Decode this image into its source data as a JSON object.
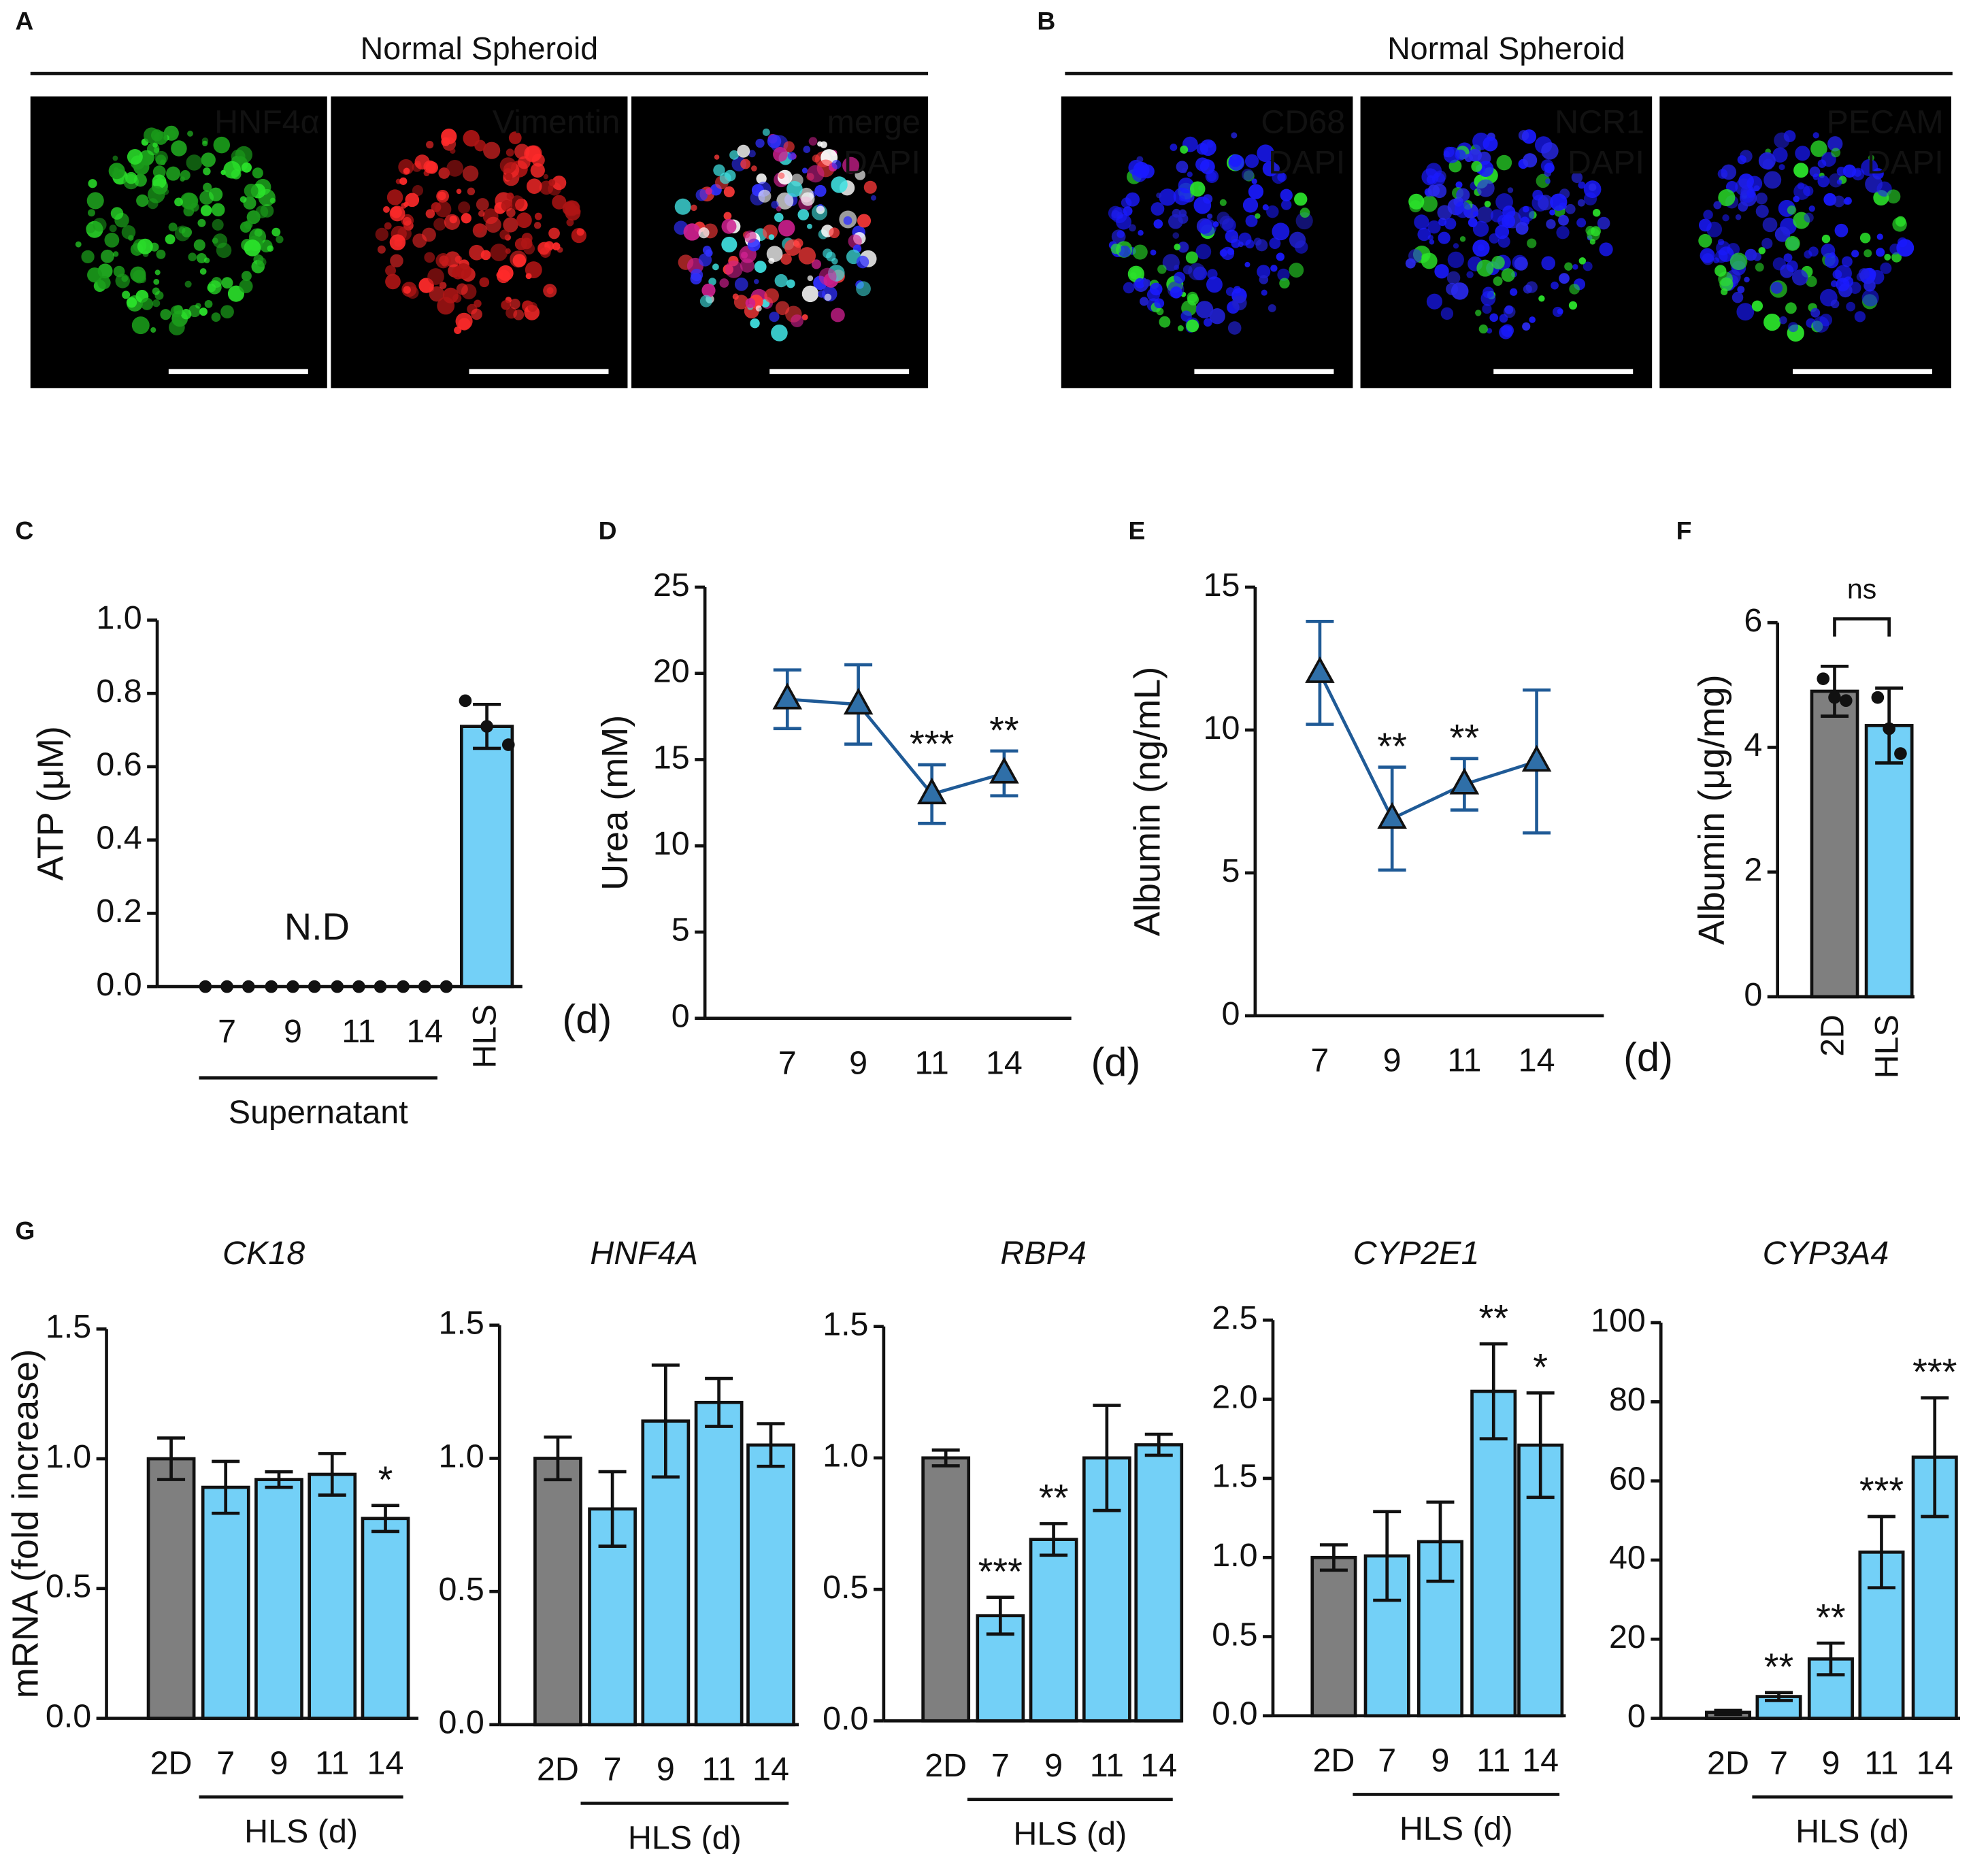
{
  "figure_panels": [
    {
      "panel": "A",
      "title": "Normal Spheroid",
      "images": [
        {
          "labels": [
            {
              "text": "HNF4α",
              "color": "#2be32b"
            }
          ]
        },
        {
          "labels": [
            {
              "text": "Vimentin",
              "color": "#ff2222"
            }
          ]
        },
        {
          "labels": [
            {
              "text": "merge",
              "color": "#ffffff"
            },
            {
              "text": "DAPI",
              "color": "#2222ff"
            }
          ]
        }
      ]
    },
    {
      "panel": "B",
      "title": "Normal Spheroid",
      "images": [
        {
          "labels": [
            {
              "text": "CD68",
              "color": "#2be32b"
            },
            {
              "text": "DAPI",
              "color": "#2222ff"
            }
          ]
        },
        {
          "labels": [
            {
              "text": "NCR1",
              "color": "#2be32b"
            },
            {
              "text": "DAPI",
              "color": "#2222ff"
            }
          ]
        },
        {
          "labels": [
            {
              "text": "PECAM",
              "color": "#2be32b"
            },
            {
              "text": "DAPI",
              "color": "#2222ff"
            }
          ]
        }
      ]
    }
  ],
  "chart_data": [
    {
      "type": "bar",
      "panel": "C",
      "ylabel": "ATP (μM)",
      "categories": [
        "7",
        "9",
        "11",
        "14",
        "HLS"
      ],
      "values": [
        0,
        0,
        0,
        0,
        0.71
      ],
      "errors": [
        null,
        null,
        null,
        null,
        0.06
      ],
      "points": [
        [
          0,
          0,
          0
        ],
        [
          0,
          0,
          0
        ],
        [
          0,
          0,
          0
        ],
        [
          0,
          0,
          0
        ],
        [
          0.78,
          0.71,
          0.66
        ]
      ],
      "color": "#73d0f7",
      "ylim": [
        0,
        1
      ],
      "yticks": [
        {
          "value": 0,
          "label": "0.0"
        },
        0.2,
        0.4,
        0.6,
        0.8,
        {
          "value": 1,
          "label": "1.0"
        }
      ],
      "annotation": "N.D",
      "unit_label": "(d)",
      "group_label": "Supernatant"
    },
    {
      "type": "line",
      "panel": "D",
      "ylabel": "Urea (mM)",
      "categories": [
        "7",
        "9",
        "11",
        "14"
      ],
      "values": [
        18.5,
        18.2,
        13.0,
        14.2
      ],
      "errors": [
        1.7,
        2.3,
        1.7,
        1.3
      ],
      "significance": [
        null,
        null,
        "***",
        "**"
      ],
      "color": "#1f5a96",
      "ylim": [
        0,
        25
      ],
      "yticks": [
        0,
        5,
        10,
        15,
        20,
        25
      ],
      "unit_label": "(d)"
    },
    {
      "type": "line",
      "panel": "E",
      "ylabel": "Albumin (ng/mL)",
      "categories": [
        "7",
        "9",
        "11",
        "14"
      ],
      "values": [
        12.0,
        6.9,
        8.1,
        8.9
      ],
      "errors": [
        1.8,
        1.8,
        0.9,
        2.5
      ],
      "significance": [
        null,
        "**",
        "**",
        null
      ],
      "color": "#1f5a96",
      "ylim": [
        0,
        15
      ],
      "yticks": [
        0,
        5,
        10,
        15
      ],
      "unit_label": "(d)"
    },
    {
      "type": "bar",
      "panel": "F",
      "ylabel": "Albumin (μg/mg)",
      "categories": [
        "2D",
        "HLS"
      ],
      "values": [
        4.9,
        4.35
      ],
      "errors": [
        0.4,
        0.6
      ],
      "points": [
        [
          5.1,
          4.8,
          4.75
        ],
        [
          4.8,
          4.3,
          3.9
        ]
      ],
      "colors": [
        "#7f7f7f",
        "#73d0f7"
      ],
      "ylim": [
        0,
        6
      ],
      "yticks": [
        0,
        2,
        4,
        6
      ],
      "annotation": "ns"
    },
    {
      "type": "bar",
      "panel": "G",
      "title": "CK18",
      "ylabel": "mRNA (fold increase)",
      "categories": [
        "2D",
        "7",
        "9",
        "11",
        "14"
      ],
      "values": [
        1.0,
        0.89,
        0.92,
        0.94,
        0.77
      ],
      "errors": [
        0.08,
        0.1,
        0.03,
        0.08,
        0.05
      ],
      "significance": [
        null,
        null,
        null,
        null,
        "*"
      ],
      "colors": [
        "#7f7f7f",
        "#73d0f7",
        "#73d0f7",
        "#73d0f7",
        "#73d0f7"
      ],
      "ylim": [
        0,
        1.5
      ],
      "yticks": [
        {
          "value": 0,
          "label": "0.0"
        },
        0.5,
        {
          "value": 1,
          "label": "1.0"
        },
        1.5
      ],
      "group_label": "HLS (d)"
    },
    {
      "type": "bar",
      "title": "HNF4A",
      "categories": [
        "2D",
        "7",
        "9",
        "11",
        "14"
      ],
      "values": [
        1.0,
        0.81,
        1.14,
        1.21,
        1.05
      ],
      "errors": [
        0.08,
        0.14,
        0.21,
        0.09,
        0.08
      ],
      "colors": [
        "#7f7f7f",
        "#73d0f7",
        "#73d0f7",
        "#73d0f7",
        "#73d0f7"
      ],
      "ylim": [
        0,
        1.5
      ],
      "yticks": [
        {
          "value": 0,
          "label": "0.0"
        },
        0.5,
        {
          "value": 1,
          "label": "1.0"
        },
        1.5
      ],
      "group_label": "HLS (d)"
    },
    {
      "type": "bar",
      "title": "RBP4",
      "categories": [
        "2D",
        "7",
        "9",
        "11",
        "14"
      ],
      "values": [
        1.0,
        0.4,
        0.69,
        1.0,
        1.05
      ],
      "errors": [
        0.03,
        0.07,
        0.06,
        0.2,
        0.04
      ],
      "significance": [
        null,
        "***",
        "**",
        null,
        null
      ],
      "colors": [
        "#7f7f7f",
        "#73d0f7",
        "#73d0f7",
        "#73d0f7",
        "#73d0f7"
      ],
      "ylim": [
        0,
        1.5
      ],
      "yticks": [
        {
          "value": 0,
          "label": "0.0"
        },
        0.5,
        {
          "value": 1,
          "label": "1.0"
        },
        1.5
      ],
      "group_label": "HLS (d)"
    },
    {
      "type": "bar",
      "title": "CYP2E1",
      "categories": [
        "2D",
        "7",
        "9",
        "11",
        "14"
      ],
      "values": [
        1.0,
        1.01,
        1.1,
        2.05,
        1.71
      ],
      "errors": [
        0.08,
        0.28,
        0.25,
        0.3,
        0.33
      ],
      "significance": [
        null,
        null,
        null,
        "**",
        "*"
      ],
      "colors": [
        "#7f7f7f",
        "#73d0f7",
        "#73d0f7",
        "#73d0f7",
        "#73d0f7"
      ],
      "ylim": [
        0,
        2.5
      ],
      "yticks": [
        {
          "value": 0,
          "label": "0.0"
        },
        0.5,
        {
          "value": 1,
          "label": "1.0"
        },
        1.5,
        {
          "value": 2,
          "label": "2.0"
        },
        2.5
      ],
      "group_label": "HLS (d)"
    },
    {
      "type": "bar",
      "title": "CYP3A4",
      "categories": [
        "2D",
        "7",
        "9",
        "11",
        "14"
      ],
      "values": [
        1.5,
        5.5,
        15,
        42,
        66
      ],
      "errors": [
        0.5,
        1,
        4,
        9,
        15
      ],
      "significance": [
        null,
        "**",
        "**",
        "***",
        "***"
      ],
      "colors": [
        "#7f7f7f",
        "#73d0f7",
        "#73d0f7",
        "#73d0f7",
        "#73d0f7"
      ],
      "ylim": [
        0,
        100
      ],
      "yticks": [
        0,
        20,
        40,
        60,
        80,
        100
      ],
      "group_label": "HLS (d)"
    }
  ]
}
